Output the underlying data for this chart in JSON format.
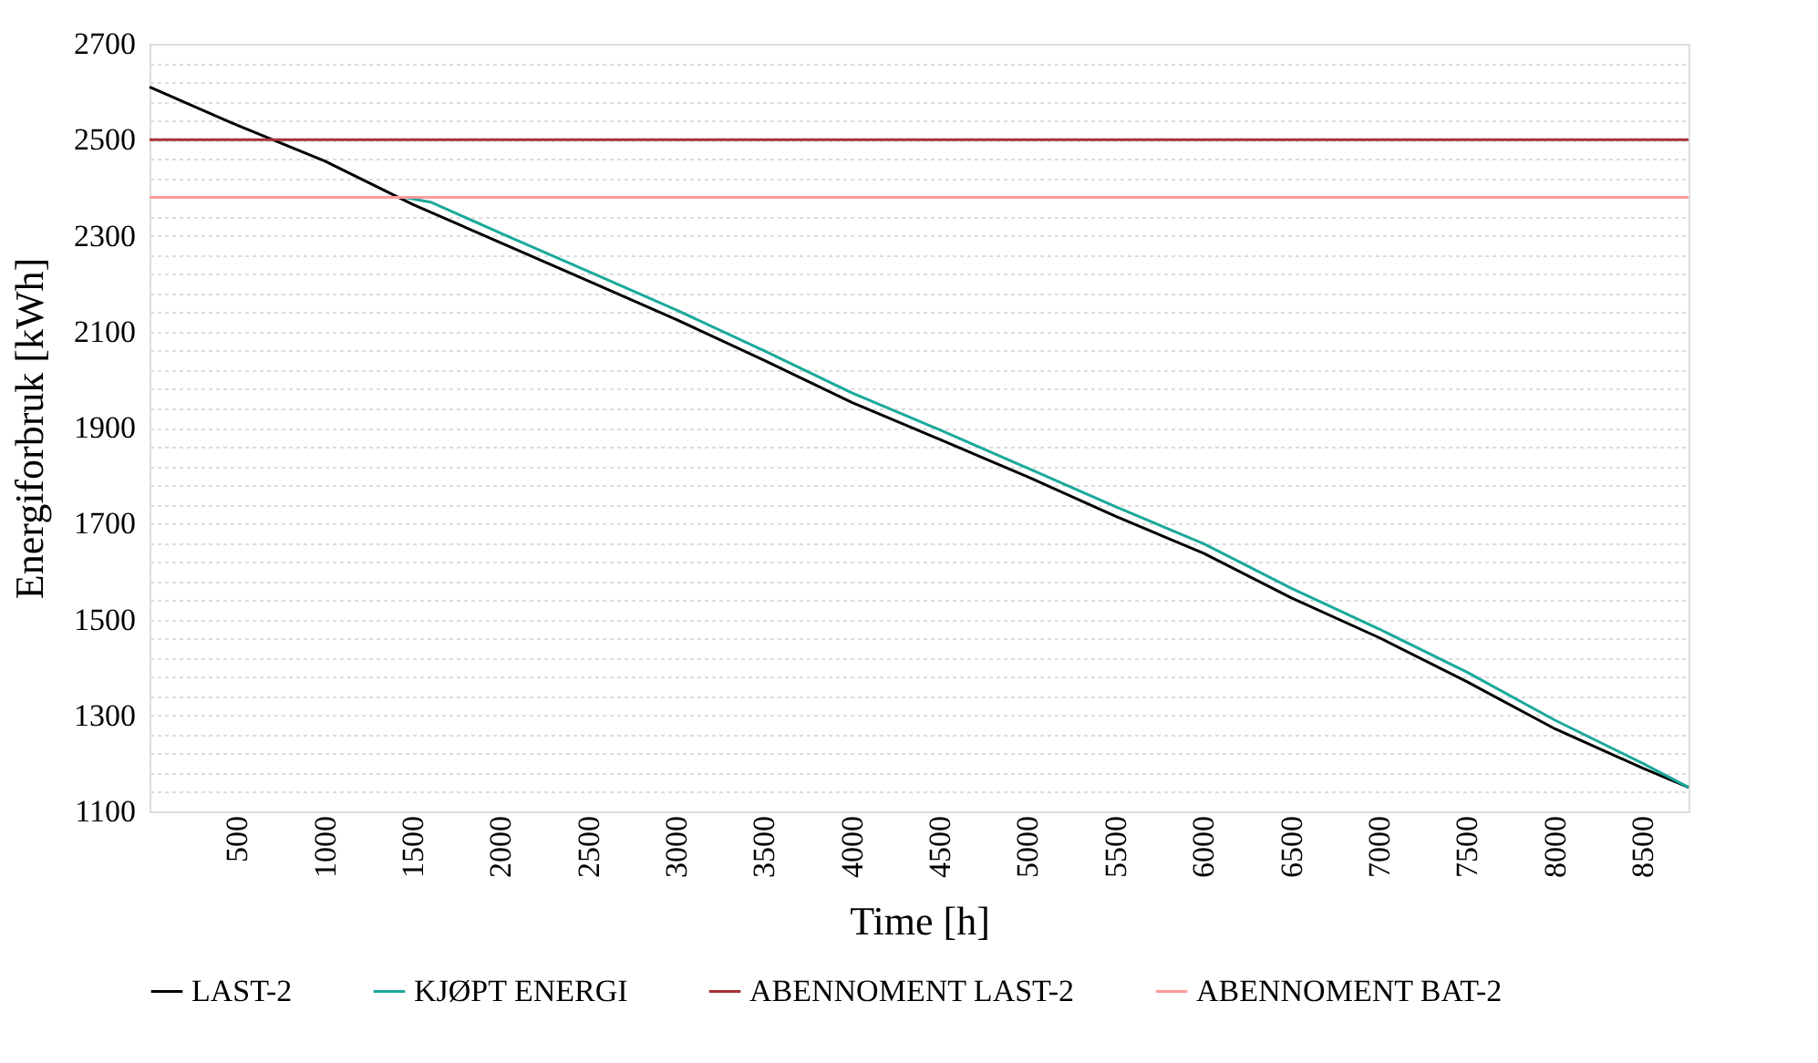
{
  "chart_data": {
    "type": "line",
    "xlabel": "Time [h]",
    "ylabel": "Energiforbruk [kWh]",
    "xlim": [
      0,
      8760
    ],
    "xticks": [
      500,
      1000,
      1500,
      2000,
      2500,
      3000,
      3500,
      4000,
      4500,
      5000,
      5500,
      6000,
      6500,
      7000,
      7500,
      8000,
      8500
    ],
    "ylim": [
      1100,
      2700
    ],
    "yticks": [
      1100,
      {
        "value": 1140,
        "label": null
      },
      {
        "value": 1180,
        "label": null
      },
      {
        "value": 1220,
        "label": null
      },
      {
        "value": 1260,
        "label": null
      },
      1300,
      {
        "value": 1340,
        "label": null
      },
      {
        "value": 1380,
        "label": null
      },
      {
        "value": 1420,
        "label": null
      },
      {
        "value": 1460,
        "label": null
      },
      1500,
      {
        "value": 1540,
        "label": null
      },
      {
        "value": 1580,
        "label": null
      },
      {
        "value": 1620,
        "label": null
      },
      {
        "value": 1660,
        "label": null
      },
      1700,
      {
        "value": 1740,
        "label": null
      },
      {
        "value": 1780,
        "label": null
      },
      {
        "value": 1820,
        "label": null
      },
      {
        "value": 1860,
        "label": null
      },
      1900,
      {
        "value": 1940,
        "label": null
      },
      {
        "value": 1980,
        "label": null
      },
      {
        "value": 2020,
        "label": null
      },
      {
        "value": 2060,
        "label": null
      },
      2100,
      {
        "value": 2140,
        "label": null
      },
      {
        "value": 2180,
        "label": null
      },
      {
        "value": 2220,
        "label": null
      },
      {
        "value": 2260,
        "label": null
      },
      2300,
      {
        "value": 2340,
        "label": null
      },
      {
        "value": 2380,
        "label": null
      },
      {
        "value": 2420,
        "label": null
      },
      {
        "value": 2460,
        "label": null
      },
      2500,
      {
        "value": 2540,
        "label": null
      },
      {
        "value": 2580,
        "label": null
      },
      {
        "value": 2620,
        "label": null
      },
      {
        "value": 2660,
        "label": null
      },
      2700
    ],
    "grid": "y",
    "legend": "bottom",
    "marker": "none",
    "line_style": "solid",
    "series": [
      {
        "name": "LAST-2",
        "color": "#000000",
        "x": [
          0,
          500,
          1000,
          1500,
          2000,
          2500,
          3000,
          3500,
          4000,
          4500,
          5000,
          5500,
          6000,
          6500,
          7000,
          7500,
          8000,
          8500,
          8760
        ],
        "values": [
          2610,
          2530,
          2455,
          2365,
          2285,
          2205,
          2125,
          2040,
          1952,
          1875,
          1797,
          1715,
          1638,
          1545,
          1462,
          1370,
          1272,
          1190,
          1150
        ]
      },
      {
        "name": "KJØPT ENERGI",
        "color": "#1aa99a",
        "x": [
          1450,
          1600,
          2000,
          2500,
          3000,
          3500,
          4000,
          4500,
          5000,
          5500,
          6000,
          6500,
          7000,
          7500,
          8000,
          8500,
          8760
        ],
        "values": [
          2380,
          2370,
          2305,
          2225,
          2145,
          2060,
          1972,
          1895,
          1815,
          1735,
          1658,
          1565,
          1480,
          1390,
          1290,
          1200,
          1150
        ]
      },
      {
        "name": "ABENNOMENT LAST-2",
        "color": "#a83236",
        "x": [
          0,
          8760
        ],
        "values": [
          2500,
          2500
        ]
      },
      {
        "name": "ABENNOMENT BAT-2",
        "color": "#ff9b9b",
        "x": [
          0,
          8760
        ],
        "values": [
          2380,
          2380
        ]
      }
    ]
  }
}
